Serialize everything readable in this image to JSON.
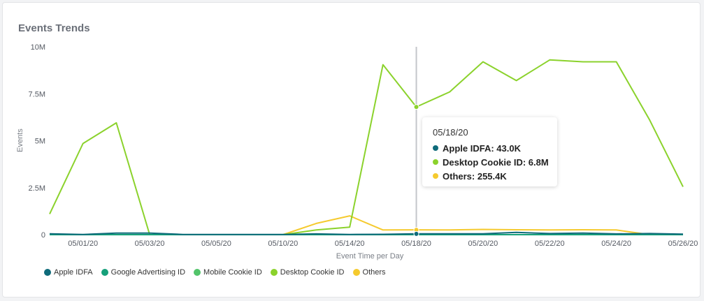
{
  "title": "Events Trends",
  "chart_data": {
    "type": "line",
    "xlabel": "Event Time per Day",
    "ylabel": "Events",
    "ylim": [
      0,
      10000000
    ],
    "yticks": [
      0,
      2500000,
      5000000,
      7500000,
      10000000
    ],
    "ytick_labels": [
      "0",
      "2.5M",
      "5M",
      "7.5M",
      "10M"
    ],
    "x": [
      "04/30/20",
      "05/01/20",
      "05/02/20",
      "05/03/20",
      "05/04/20",
      "05/05/20",
      "05/06/20",
      "05/10/20",
      "05/12/20",
      "05/14/20",
      "05/16/20",
      "05/18/20",
      "05/19/20",
      "05/20/20",
      "05/21/20",
      "05/22/20",
      "05/23/20",
      "05/24/20",
      "05/25/20",
      "05/26/20"
    ],
    "xtick_labels": [
      "05/01/20",
      "05/03/20",
      "05/05/20",
      "05/10/20",
      "05/14/20",
      "05/18/20",
      "05/20/20",
      "05/22/20",
      "05/24/20",
      "05/26/20"
    ],
    "series": [
      {
        "name": "Apple IDFA",
        "color": "#0f6b7a",
        "values": [
          50000,
          10000,
          80000,
          80000,
          10000,
          10000,
          10000,
          10000,
          40000,
          10000,
          20000,
          43000,
          50000,
          50000,
          120000,
          60000,
          80000,
          40000,
          60000,
          30000
        ]
      },
      {
        "name": "Google Advertising ID",
        "color": "#16a07a",
        "values": [
          0,
          0,
          0,
          0,
          0,
          0,
          0,
          0,
          0,
          0,
          0,
          0,
          0,
          0,
          0,
          0,
          0,
          0,
          0,
          0
        ]
      },
      {
        "name": "Mobile Cookie ID",
        "color": "#52c46a",
        "values": [
          0,
          0,
          0,
          0,
          0,
          0,
          0,
          0,
          0,
          0,
          0,
          0,
          0,
          0,
          0,
          0,
          0,
          0,
          0,
          0
        ]
      },
      {
        "name": "Desktop Cookie ID",
        "color": "#8bd22c",
        "values": [
          1100000,
          4850000,
          5950000,
          0,
          0,
          0,
          0,
          0,
          250000,
          400000,
          9050000,
          6800000,
          7600000,
          9200000,
          8200000,
          9300000,
          9200000,
          9200000,
          6100000,
          2550000
        ]
      },
      {
        "name": "Others",
        "color": "#f5ca2e",
        "values": [
          0,
          0,
          0,
          0,
          0,
          0,
          0,
          0,
          600000,
          1000000,
          250000,
          255400,
          250000,
          280000,
          260000,
          250000,
          260000,
          250000,
          0,
          0
        ]
      }
    ],
    "tooltip": {
      "date": "05/18/20",
      "rows": [
        {
          "label": "Apple IDFA: 43.0K",
          "color": "#0f6b7a"
        },
        {
          "label": "Desktop Cookie ID: 6.8M",
          "color": "#8bd22c"
        },
        {
          "label": "Others: 255.4K",
          "color": "#f5ca2e"
        }
      ]
    },
    "legend_position": "bottom-left",
    "grid": false
  }
}
